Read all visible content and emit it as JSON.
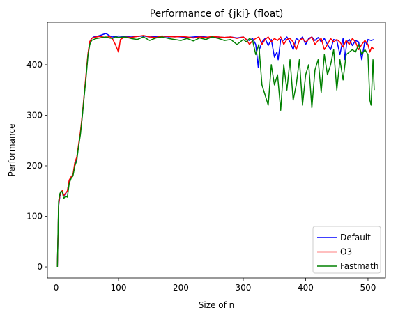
{
  "chart_data": {
    "type": "line",
    "title": "Performance of {jki} (float)",
    "xlabel": "Size of n",
    "ylabel": "Performance",
    "xlim": [
      -14,
      528
    ],
    "ylim": [
      -22,
      484
    ],
    "xticks": [
      0,
      100,
      200,
      300,
      400,
      500
    ],
    "yticks": [
      0,
      100,
      200,
      300,
      400
    ],
    "grid": false,
    "legend_position": "lower right",
    "series": [
      {
        "name": "Default",
        "color": "#0000ff",
        "x": [
          2,
          4,
          6,
          8,
          10,
          12,
          15,
          18,
          21,
          24,
          27,
          30,
          33,
          36,
          39,
          42,
          45,
          48,
          51,
          54,
          57,
          60,
          65,
          70,
          75,
          80,
          85,
          90,
          100,
          110,
          120,
          130,
          140,
          150,
          160,
          170,
          180,
          190,
          200,
          210,
          220,
          230,
          240,
          250,
          260,
          270,
          280,
          290,
          300,
          305,
          310,
          315,
          320,
          324,
          326,
          330,
          335,
          340,
          345,
          350,
          354,
          356,
          360,
          365,
          370,
          375,
          380,
          385,
          390,
          395,
          400,
          405,
          410,
          415,
          420,
          425,
          430,
          435,
          440,
          445,
          450,
          455,
          460,
          463,
          466,
          470,
          475,
          480,
          485,
          490,
          495,
          498,
          500,
          505,
          510
        ],
        "y": [
          0,
          120,
          140,
          148,
          150,
          140,
          145,
          150,
          170,
          178,
          182,
          205,
          215,
          240,
          265,
          300,
          340,
          380,
          420,
          445,
          452,
          455,
          456,
          458,
          460,
          462,
          458,
          455,
          457,
          456,
          455,
          456,
          457,
          455,
          456,
          457,
          455,
          456,
          455,
          454,
          455,
          456,
          455,
          454,
          455,
          454,
          455,
          453,
          455,
          450,
          448,
          452,
          440,
          395,
          430,
          445,
          452,
          438,
          450,
          415,
          425,
          410,
          450,
          448,
          455,
          445,
          430,
          452,
          448,
          455,
          440,
          452,
          455,
          448,
          454,
          445,
          452,
          440,
          430,
          450,
          448,
          420,
          452,
          410,
          445,
          450,
          438,
          448,
          445,
          410,
          448,
          440,
          450,
          448,
          450
        ]
      },
      {
        "name": "O3",
        "color": "#ff0000",
        "x": [
          2,
          4,
          6,
          8,
          10,
          12,
          15,
          18,
          21,
          24,
          27,
          30,
          33,
          36,
          39,
          42,
          45,
          48,
          51,
          54,
          57,
          60,
          65,
          70,
          75,
          80,
          85,
          90,
          95,
          100,
          103,
          106,
          110,
          120,
          130,
          140,
          150,
          160,
          170,
          180,
          190,
          200,
          210,
          220,
          230,
          240,
          250,
          260,
          270,
          280,
          290,
          300,
          305,
          310,
          315,
          320,
          325,
          330,
          335,
          340,
          345,
          350,
          355,
          360,
          365,
          370,
          375,
          380,
          385,
          390,
          395,
          400,
          405,
          410,
          415,
          420,
          425,
          430,
          435,
          440,
          445,
          450,
          455,
          460,
          465,
          470,
          475,
          480,
          485,
          490,
          495,
          500,
          503,
          506,
          510
        ],
        "y": [
          0,
          122,
          142,
          148,
          151,
          141,
          146,
          150,
          172,
          178,
          183,
          207,
          217,
          242,
          268,
          302,
          342,
          382,
          422,
          446,
          452,
          454,
          455,
          456,
          455,
          454,
          456,
          452,
          440,
          425,
          450,
          452,
          455,
          454,
          456,
          458,
          455,
          454,
          457,
          456,
          455,
          456,
          455,
          453,
          455,
          454,
          456,
          455,
          454,
          455,
          452,
          455,
          450,
          440,
          448,
          452,
          455,
          440,
          450,
          455,
          445,
          452,
          448,
          455,
          440,
          450,
          452,
          445,
          430,
          448,
          452,
          445,
          450,
          455,
          440,
          448,
          452,
          430,
          440,
          452,
          445,
          450,
          445,
          435,
          448,
          440,
          452,
          445,
          430,
          440,
          448,
          440,
          425,
          435,
          430
        ]
      },
      {
        "name": "Fastmath",
        "color": "#008000",
        "x": [
          2,
          4,
          6,
          8,
          10,
          12,
          15,
          18,
          21,
          24,
          27,
          30,
          33,
          36,
          39,
          42,
          45,
          48,
          51,
          54,
          57,
          60,
          65,
          70,
          75,
          80,
          85,
          90,
          95,
          100,
          110,
          120,
          130,
          140,
          150,
          160,
          170,
          180,
          190,
          200,
          210,
          220,
          230,
          240,
          250,
          260,
          270,
          280,
          290,
          300,
          305,
          310,
          315,
          320,
          325,
          330,
          335,
          340,
          345,
          350,
          355,
          360,
          365,
          370,
          375,
          380,
          385,
          390,
          395,
          400,
          405,
          410,
          415,
          420,
          425,
          430,
          435,
          440,
          445,
          450,
          455,
          460,
          465,
          470,
          475,
          480,
          485,
          490,
          495,
          500,
          503,
          505,
          508,
          510
        ],
        "y": [
          0,
          130,
          145,
          150,
          148,
          135,
          140,
          138,
          165,
          175,
          180,
          200,
          210,
          238,
          262,
          298,
          338,
          375,
          418,
          440,
          448,
          450,
          452,
          453,
          454,
          455,
          453,
          452,
          455,
          454,
          455,
          452,
          450,
          455,
          448,
          453,
          455,
          452,
          450,
          448,
          452,
          447,
          453,
          450,
          455,
          452,
          448,
          450,
          440,
          450,
          445,
          452,
          448,
          420,
          440,
          360,
          340,
          320,
          400,
          360,
          380,
          310,
          400,
          350,
          410,
          330,
          360,
          410,
          320,
          380,
          400,
          315,
          390,
          410,
          345,
          420,
          380,
          400,
          430,
          350,
          410,
          370,
          420,
          425,
          430,
          425,
          440,
          420,
          430,
          420,
          330,
          320,
          410,
          350
        ]
      }
    ]
  }
}
